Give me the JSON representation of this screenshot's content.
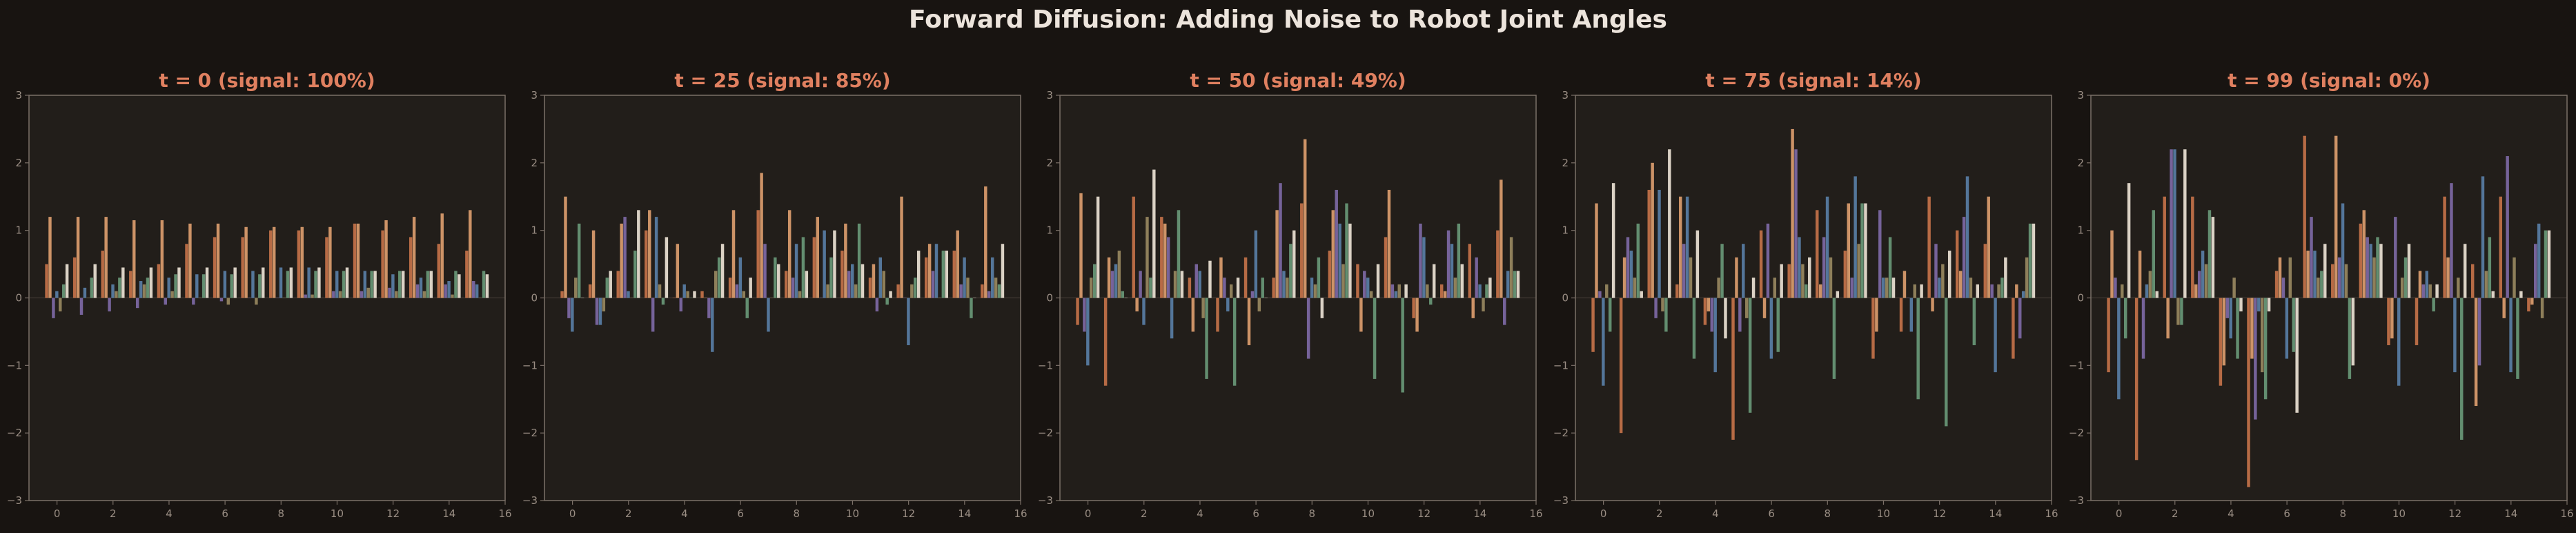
{
  "figure": {
    "title": "Forward Diffusion: Adding Noise to Robot Joint Angles"
  },
  "colors": {
    "background": "#181411",
    "panel": "#221e1a",
    "spine": "#7b7068",
    "title": "#e08060",
    "tick_label": "#9a8e84",
    "series_palette": [
      "#c8734a",
      "#e0a070",
      "#7f6aa8",
      "#5a80a8",
      "#9a8a62",
      "#6a9a7a",
      "#f0e6d8",
      "#a89480"
    ]
  },
  "chart_data": [
    {
      "type": "bar",
      "title": "t = 0  (signal: 100%)",
      "xlabel": "",
      "ylabel": "",
      "xlim": [
        -1,
        16
      ],
      "ylim": [
        -3,
        3
      ],
      "xticks": [
        0,
        2,
        4,
        6,
        8,
        10,
        12,
        14,
        16
      ],
      "yticks": [
        -3,
        -2,
        -1,
        0,
        1,
        2,
        3
      ],
      "grid": false,
      "x": [
        0,
        1,
        2,
        3,
        4,
        5,
        6,
        7,
        8,
        9,
        10,
        11,
        12,
        13,
        14,
        15
      ],
      "series": [
        {
          "values": [
            0.5,
            0.6,
            0.7,
            0.4,
            0.5,
            0.8,
            0.9,
            0.9,
            1.0,
            1.0,
            0.9,
            1.1,
            1.0,
            0.9,
            0.8,
            0.7
          ]
        },
        {
          "values": [
            1.2,
            1.2,
            1.2,
            1.15,
            1.15,
            1.1,
            1.1,
            1.05,
            1.05,
            1.05,
            1.05,
            1.1,
            1.15,
            1.2,
            1.25,
            1.3
          ]
        },
        {
          "values": [
            -0.3,
            -0.25,
            -0.2,
            -0.15,
            -0.1,
            -0.1,
            -0.05,
            0.0,
            0.0,
            0.05,
            0.1,
            0.1,
            0.15,
            0.2,
            0.2,
            0.25
          ]
        },
        {
          "values": [
            0.1,
            0.15,
            0.2,
            0.25,
            0.3,
            0.35,
            0.4,
            0.4,
            0.45,
            0.45,
            0.4,
            0.4,
            0.35,
            0.3,
            0.25,
            0.2
          ]
        },
        {
          "values": [
            -0.2,
            0.0,
            0.1,
            0.2,
            0.1,
            0.0,
            -0.1,
            -0.1,
            0.0,
            0.05,
            0.1,
            0.15,
            0.1,
            0.1,
            0.05,
            0.0
          ]
        },
        {
          "values": [
            0.2,
            0.3,
            0.3,
            0.3,
            0.35,
            0.35,
            0.35,
            0.35,
            0.4,
            0.4,
            0.4,
            0.4,
            0.4,
            0.4,
            0.4,
            0.4
          ]
        },
        {
          "values": [
            0.5,
            0.5,
            0.45,
            0.45,
            0.45,
            0.45,
            0.45,
            0.45,
            0.45,
            0.45,
            0.45,
            0.4,
            0.4,
            0.4,
            0.35,
            0.35
          ]
        }
      ]
    },
    {
      "type": "bar",
      "title": "t = 25  (signal: 85%)",
      "xlabel": "",
      "ylabel": "",
      "xlim": [
        -1,
        16
      ],
      "ylim": [
        -3,
        3
      ],
      "xticks": [
        0,
        2,
        4,
        6,
        8,
        10,
        12,
        14,
        16
      ],
      "yticks": [
        -3,
        -2,
        -1,
        0,
        1,
        2,
        3
      ],
      "grid": false,
      "x": [
        0,
        1,
        2,
        3,
        4,
        5,
        6,
        7,
        8,
        9,
        10,
        11,
        12,
        13,
        14,
        15
      ],
      "series": [
        {
          "values": [
            0.1,
            0.2,
            0.4,
            1.0,
            0.0,
            0.1,
            0.3,
            1.3,
            0.4,
            0.9,
            0.7,
            0.3,
            0.2,
            0.6,
            0.7,
            0.2
          ]
        },
        {
          "values": [
            1.5,
            1.0,
            1.1,
            1.3,
            0.8,
            0.0,
            1.3,
            1.85,
            1.3,
            1.2,
            1.1,
            0.5,
            1.5,
            0.8,
            1.0,
            1.65
          ]
        },
        {
          "values": [
            -0.3,
            -0.4,
            1.2,
            -0.5,
            -0.2,
            -0.3,
            0.2,
            0.8,
            0.3,
            0.0,
            0.4,
            -0.2,
            0.0,
            0.4,
            0.2,
            0.1
          ]
        },
        {
          "values": [
            -0.5,
            -0.4,
            0.1,
            1.2,
            0.2,
            -0.8,
            0.6,
            -0.5,
            0.8,
            1.0,
            0.5,
            0.6,
            -0.7,
            0.8,
            0.6,
            0.6
          ]
        },
        {
          "values": [
            0.3,
            -0.2,
            0.0,
            0.2,
            0.1,
            0.4,
            0.1,
            0.0,
            0.1,
            0.2,
            0.2,
            0.4,
            0.2,
            0.0,
            0.3,
            0.3
          ]
        },
        {
          "values": [
            1.1,
            0.3,
            0.7,
            -0.1,
            0.0,
            0.6,
            -0.3,
            0.6,
            0.9,
            0.6,
            1.1,
            -0.1,
            0.3,
            0.7,
            -0.3,
            0.2
          ]
        },
        {
          "values": [
            0.0,
            0.4,
            1.3,
            0.9,
            0.1,
            0.8,
            0.3,
            0.5,
            0.4,
            1.0,
            0.5,
            0.1,
            0.7,
            0.7,
            0.0,
            0.8
          ]
        }
      ]
    },
    {
      "type": "bar",
      "title": "t = 50  (signal: 49%)",
      "xlabel": "",
      "ylabel": "",
      "xlim": [
        -1,
        16
      ],
      "ylim": [
        -3,
        3
      ],
      "xticks": [
        0,
        2,
        4,
        6,
        8,
        10,
        12,
        14,
        16
      ],
      "yticks": [
        -3,
        -2,
        -1,
        0,
        1,
        2,
        3
      ],
      "grid": false,
      "x": [
        0,
        1,
        2,
        3,
        4,
        5,
        6,
        7,
        8,
        9,
        10,
        11,
        12,
        13,
        14,
        15
      ],
      "series": [
        {
          "values": [
            -0.4,
            -1.3,
            1.5,
            1.2,
            0.3,
            -0.5,
            0.6,
            0.3,
            1.4,
            0.7,
            0.5,
            0.9,
            -0.3,
            0.2,
            0.8,
            1.0
          ]
        },
        {
          "values": [
            1.55,
            0.6,
            -0.2,
            1.1,
            -0.5,
            0.6,
            -0.7,
            1.3,
            2.35,
            1.3,
            -0.5,
            1.6,
            -0.5,
            0.1,
            -0.3,
            1.75
          ]
        },
        {
          "values": [
            -0.5,
            0.4,
            0.4,
            0.9,
            0.5,
            0.3,
            0.1,
            1.7,
            -0.9,
            1.6,
            0.4,
            0.2,
            1.1,
            1.0,
            0.6,
            -0.4
          ]
        },
        {
          "values": [
            -1.0,
            0.5,
            -0.4,
            -0.6,
            0.4,
            -0.2,
            1.0,
            0.4,
            0.3,
            1.1,
            0.3,
            0.1,
            0.9,
            0.8,
            0.2,
            0.4
          ]
        },
        {
          "values": [
            0.3,
            0.7,
            1.2,
            0.4,
            -0.3,
            0.2,
            -0.2,
            0.3,
            0.2,
            0.5,
            0.1,
            0.2,
            0.2,
            0.3,
            -0.2,
            0.9
          ]
        },
        {
          "values": [
            0.5,
            0.1,
            0.3,
            1.3,
            -1.2,
            -1.3,
            0.3,
            0.8,
            0.6,
            1.4,
            -1.2,
            -1.4,
            -0.1,
            1.1,
            0.2,
            0.4
          ]
        },
        {
          "values": [
            1.5,
            0.0,
            1.9,
            0.4,
            0.55,
            0.3,
            0.0,
            1.0,
            -0.3,
            1.1,
            0.5,
            0.2,
            0.5,
            0.5,
            0.3,
            0.4
          ]
        }
      ]
    },
    {
      "type": "bar",
      "title": "t = 75  (signal: 14%)",
      "xlabel": "",
      "ylabel": "",
      "xlim": [
        -1,
        16
      ],
      "ylim": [
        -3,
        3
      ],
      "xticks": [
        0,
        2,
        4,
        6,
        8,
        10,
        12,
        14,
        16
      ],
      "yticks": [
        -3,
        -2,
        -1,
        0,
        1,
        2,
        3
      ],
      "grid": false,
      "x": [
        0,
        1,
        2,
        3,
        4,
        5,
        6,
        7,
        8,
        9,
        10,
        11,
        12,
        13,
        14,
        15
      ],
      "series": [
        {
          "values": [
            -0.8,
            -2.0,
            1.6,
            0.2,
            -0.4,
            -2.1,
            1.0,
            0.5,
            1.3,
            0.7,
            -0.9,
            -0.5,
            1.5,
            1.0,
            0.8,
            -0.9
          ]
        },
        {
          "values": [
            1.4,
            0.6,
            2.0,
            1.5,
            -0.2,
            0.6,
            -0.3,
            2.5,
            0.2,
            1.4,
            -0.5,
            0.4,
            -0.2,
            0.4,
            1.5,
            0.2
          ]
        },
        {
          "values": [
            0.1,
            0.9,
            -0.3,
            0.8,
            -0.5,
            -0.5,
            1.1,
            2.2,
            0.9,
            0.3,
            1.3,
            0.0,
            0.8,
            1.2,
            0.2,
            -0.6
          ]
        },
        {
          "values": [
            -1.3,
            0.7,
            1.6,
            1.5,
            -1.1,
            0.8,
            -0.9,
            0.9,
            1.5,
            1.8,
            0.3,
            -0.5,
            0.3,
            1.8,
            -1.1,
            0.1
          ]
        },
        {
          "values": [
            0.2,
            0.3,
            -0.2,
            0.6,
            0.3,
            -0.3,
            0.3,
            0.5,
            0.6,
            0.8,
            0.3,
            0.2,
            0.5,
            0.3,
            0.2,
            0.6
          ]
        },
        {
          "values": [
            -0.5,
            1.1,
            -0.5,
            -0.9,
            0.8,
            -1.7,
            -0.8,
            0.2,
            -1.2,
            1.4,
            0.9,
            -1.5,
            -1.9,
            -0.7,
            0.3,
            1.1
          ]
        },
        {
          "values": [
            1.7,
            0.1,
            2.2,
            1.0,
            -0.6,
            0.3,
            0.5,
            0.6,
            0.1,
            1.4,
            0.3,
            0.2,
            0.7,
            0.2,
            0.6,
            1.1
          ]
        }
      ]
    },
    {
      "type": "bar",
      "title": "t = 99  (signal: 0%)",
      "xlabel": "",
      "ylabel": "",
      "xlim": [
        -1,
        16
      ],
      "ylim": [
        -3,
        3
      ],
      "xticks": [
        0,
        2,
        4,
        6,
        8,
        10,
        12,
        14,
        16
      ],
      "yticks": [
        -3,
        -2,
        -1,
        0,
        1,
        2,
        3
      ],
      "grid": false,
      "x": [
        0,
        1,
        2,
        3,
        4,
        5,
        6,
        7,
        8,
        9,
        10,
        11,
        12,
        13,
        14,
        15
      ],
      "series": [
        {
          "values": [
            -1.1,
            -2.4,
            1.5,
            1.5,
            -1.3,
            -2.8,
            0.4,
            2.4,
            0.5,
            1.1,
            -0.7,
            -0.7,
            1.5,
            0.5,
            1.5,
            -0.2
          ]
        },
        {
          "values": [
            1.0,
            0.7,
            -0.6,
            0.2,
            -1.0,
            -0.9,
            0.6,
            0.7,
            2.4,
            1.3,
            -0.6,
            0.4,
            0.6,
            -1.6,
            -0.3,
            -0.1
          ]
        },
        {
          "values": [
            0.3,
            -0.9,
            2.2,
            0.4,
            -0.3,
            -1.8,
            0.3,
            1.2,
            0.6,
            0.9,
            1.2,
            0.2,
            1.7,
            -1.0,
            2.1,
            0.8
          ]
        },
        {
          "values": [
            -1.5,
            0.2,
            2.2,
            0.7,
            -0.6,
            -0.2,
            -0.9,
            0.7,
            1.4,
            0.8,
            -1.3,
            0.4,
            -1.1,
            1.8,
            -1.1,
            1.1
          ]
        },
        {
          "values": [
            0.2,
            0.4,
            -0.4,
            0.5,
            0.3,
            -1.1,
            0.6,
            0.3,
            0.5,
            0.6,
            0.3,
            0.2,
            0.3,
            0.4,
            0.6,
            -0.3
          ]
        },
        {
          "values": [
            -0.6,
            1.3,
            -0.4,
            1.3,
            -0.9,
            -1.5,
            -0.8,
            0.4,
            -1.2,
            0.9,
            0.6,
            -0.2,
            -2.1,
            0.9,
            -1.2,
            1.0
          ]
        },
        {
          "values": [
            1.7,
            0.1,
            2.2,
            1.2,
            -0.2,
            -0.2,
            -1.7,
            0.8,
            -1.0,
            0.8,
            0.8,
            0.2,
            0.8,
            0.1,
            0.1,
            1.0
          ]
        }
      ]
    }
  ]
}
